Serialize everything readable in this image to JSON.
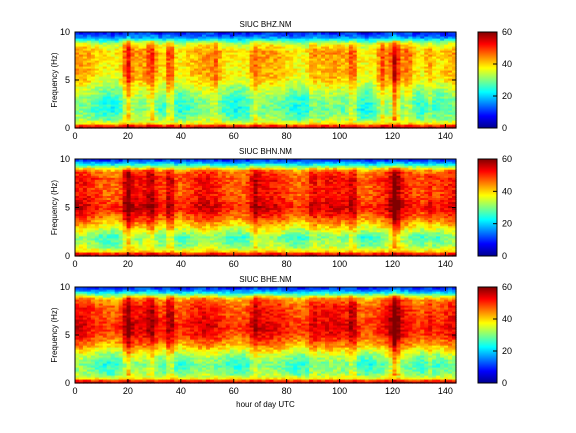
{
  "chart_data": [
    {
      "type": "heatmap",
      "title": "SIUC BHZ.NM",
      "xlabel": "",
      "ylabel": "Frequency (Hz)",
      "xlim": [
        0,
        144
      ],
      "ylim": [
        0,
        10
      ],
      "xticks": [
        0,
        20,
        40,
        60,
        80,
        100,
        120,
        140
      ],
      "yticks": [
        0,
        5,
        10
      ],
      "colorbar": {
        "ticks": [
          0,
          20,
          40,
          60
        ],
        "range": [
          0,
          60
        ],
        "colormap": "jet"
      },
      "spectral_profile": [
        {
          "freq": 0.2,
          "value": 55
        },
        {
          "freq": 0.5,
          "value": 38
        },
        {
          "freq": 1.0,
          "value": 30
        },
        {
          "freq": 2.0,
          "value": 26
        },
        {
          "freq": 3.0,
          "value": 28
        },
        {
          "freq": 4.0,
          "value": 32
        },
        {
          "freq": 5.0,
          "value": 38
        },
        {
          "freq": 6.0,
          "value": 40
        },
        {
          "freq": 7.0,
          "value": 40
        },
        {
          "freq": 8.0,
          "value": 41
        },
        {
          "freq": 8.8,
          "value": 35
        },
        {
          "freq": 9.5,
          "value": 15
        }
      ],
      "bursts": [
        {
          "hour": 20,
          "boost": 12
        },
        {
          "hour": 29,
          "boost": 8
        },
        {
          "hour": 36,
          "boost": 12
        },
        {
          "hour": 53,
          "boost": 5
        },
        {
          "hour": 68,
          "boost": 6
        },
        {
          "hour": 90,
          "boost": 5
        },
        {
          "hour": 105,
          "boost": 9
        },
        {
          "hour": 116,
          "boost": 8
        },
        {
          "hour": 121,
          "boost": 13
        },
        {
          "hour": 126,
          "boost": 6
        },
        {
          "hour": 134,
          "boost": 6
        }
      ]
    },
    {
      "type": "heatmap",
      "title": "SIUC BHN.NM",
      "xlabel": "",
      "ylabel": "Frequency (Hz)",
      "xlim": [
        0,
        144
      ],
      "ylim": [
        0,
        10
      ],
      "xticks": [
        0,
        20,
        40,
        60,
        80,
        100,
        120,
        140
      ],
      "yticks": [
        0,
        5,
        10
      ],
      "colorbar": {
        "ticks": [
          0,
          20,
          40,
          60
        ],
        "range": [
          0,
          60
        ],
        "colormap": "jet"
      },
      "spectral_profile": [
        {
          "freq": 0.2,
          "value": 56
        },
        {
          "freq": 0.5,
          "value": 40
        },
        {
          "freq": 1.0,
          "value": 32
        },
        {
          "freq": 2.0,
          "value": 28
        },
        {
          "freq": 3.0,
          "value": 38
        },
        {
          "freq": 4.0,
          "value": 47
        },
        {
          "freq": 5.0,
          "value": 53
        },
        {
          "freq": 6.0,
          "value": 50
        },
        {
          "freq": 7.0,
          "value": 49
        },
        {
          "freq": 8.0,
          "value": 50
        },
        {
          "freq": 8.8,
          "value": 46
        },
        {
          "freq": 9.5,
          "value": 22
        }
      ],
      "bursts": [
        {
          "hour": 20,
          "boost": 10
        },
        {
          "hour": 29,
          "boost": 6
        },
        {
          "hour": 36,
          "boost": 10
        },
        {
          "hour": 68,
          "boost": 6
        },
        {
          "hour": 90,
          "boost": 5
        },
        {
          "hour": 105,
          "boost": 7
        },
        {
          "hour": 121,
          "boost": 10
        },
        {
          "hour": 134,
          "boost": 5
        }
      ]
    },
    {
      "type": "heatmap",
      "title": "SIUC BHE.NM",
      "xlabel": "hour of day UTC",
      "ylabel": "Frequency (Hz)",
      "xlim": [
        0,
        144
      ],
      "ylim": [
        0,
        10
      ],
      "xticks": [
        0,
        20,
        40,
        60,
        80,
        100,
        120,
        140
      ],
      "yticks": [
        0,
        5,
        10
      ],
      "colorbar": {
        "ticks": [
          0,
          20,
          40,
          60
        ],
        "range": [
          0,
          60
        ],
        "colormap": "jet"
      },
      "spectral_profile": [
        {
          "freq": 0.2,
          "value": 55
        },
        {
          "freq": 0.5,
          "value": 38
        },
        {
          "freq": 1.0,
          "value": 30
        },
        {
          "freq": 2.0,
          "value": 27
        },
        {
          "freq": 3.0,
          "value": 33
        },
        {
          "freq": 4.0,
          "value": 43
        },
        {
          "freq": 5.0,
          "value": 50
        },
        {
          "freq": 6.0,
          "value": 52
        },
        {
          "freq": 7.0,
          "value": 50
        },
        {
          "freq": 8.0,
          "value": 49
        },
        {
          "freq": 8.8,
          "value": 44
        },
        {
          "freq": 9.5,
          "value": 20
        }
      ],
      "bursts": [
        {
          "hour": 20,
          "boost": 10
        },
        {
          "hour": 29,
          "boost": 6
        },
        {
          "hour": 36,
          "boost": 10
        },
        {
          "hour": 68,
          "boost": 6
        },
        {
          "hour": 90,
          "boost": 5
        },
        {
          "hour": 105,
          "boost": 8
        },
        {
          "hour": 121,
          "boost": 11
        },
        {
          "hour": 134,
          "boost": 5
        }
      ]
    }
  ]
}
